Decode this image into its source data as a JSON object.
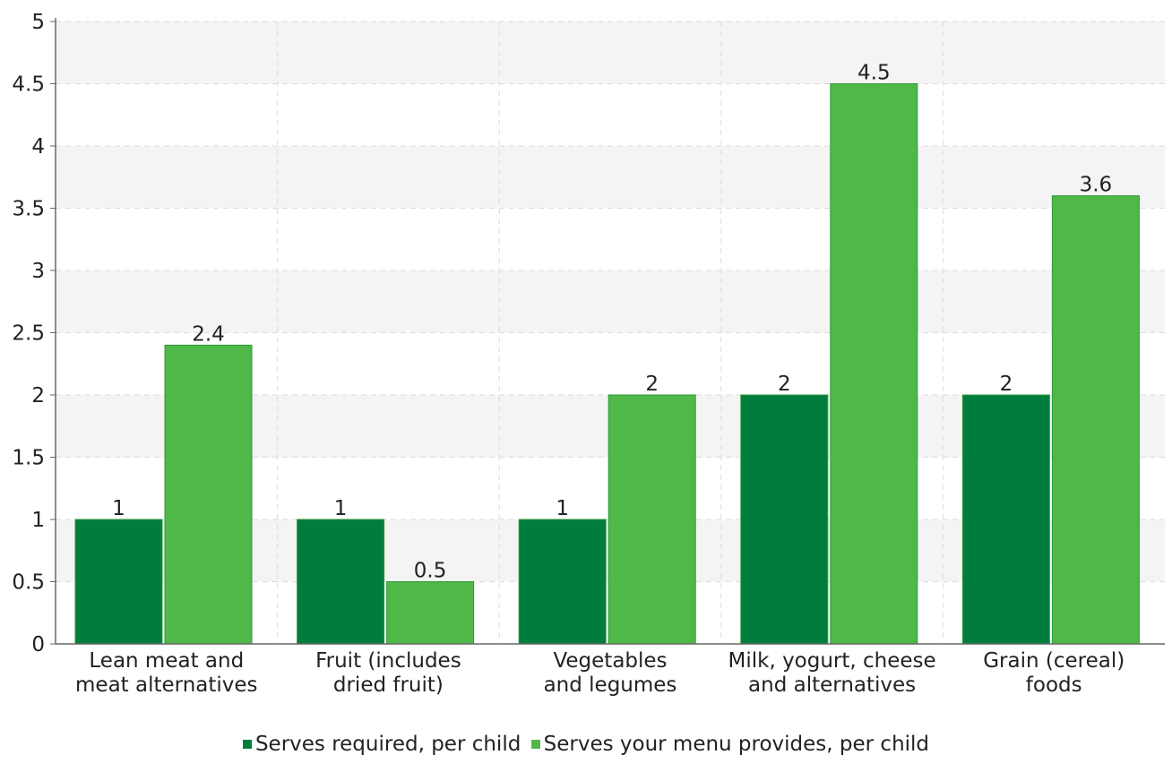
{
  "chart_data": {
    "type": "bar",
    "categories": [
      [
        "Lean meat and",
        "meat alternatives"
      ],
      [
        "Fruit (includes",
        "dried fruit)"
      ],
      [
        "Vegetables",
        "and legumes"
      ],
      [
        "Milk, yogurt, cheese",
        "and alternatives"
      ],
      [
        "Grain (cereal)",
        "foods"
      ]
    ],
    "series": [
      {
        "name": "Serves required, per child",
        "color": "#007d3c",
        "values": [
          1,
          1,
          1,
          2,
          2
        ]
      },
      {
        "name": "Serves your menu provides, per child",
        "color": "#50b848",
        "values": [
          2.4,
          0.5,
          2,
          4.5,
          3.6
        ]
      }
    ],
    "ylim": [
      0,
      5
    ],
    "yticks": [
      0,
      0.5,
      1,
      1.5,
      2,
      2.5,
      3,
      3.5,
      4,
      4.5,
      5
    ],
    "ytick_labels": [
      "0",
      "0.5",
      "1",
      "1.5",
      "2",
      "2.5",
      "3",
      "3.5",
      "4",
      "4.5",
      "5"
    ],
    "grid": true,
    "legend_position": "bottom"
  }
}
